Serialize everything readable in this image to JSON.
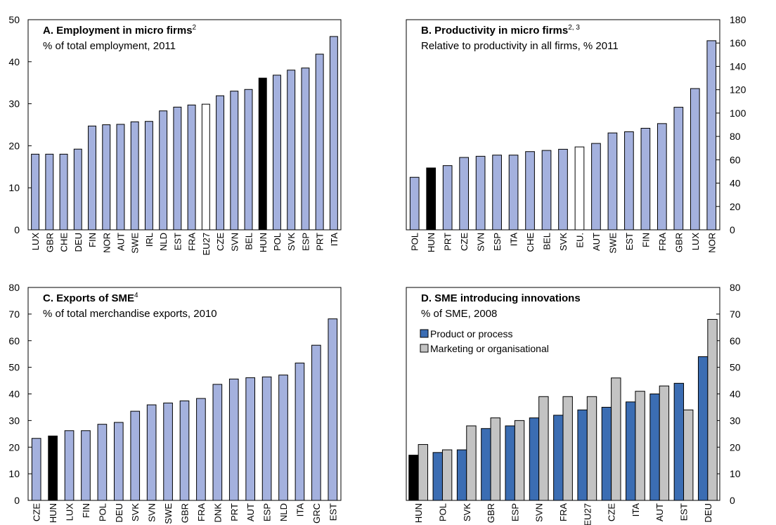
{
  "chart_data": [
    {
      "id": "A",
      "type": "bar",
      "title": "A. Employment in micro firms",
      "title_sup": "2",
      "subtitle": "% of total employment, 2011",
      "categories": [
        "LUX",
        "GBR",
        "CHE",
        "DEU",
        "FIN",
        "NOR",
        "AUT",
        "SWE",
        "IRL",
        "NLD",
        "EST",
        "FRA",
        "EU27",
        "CZE",
        "SVN",
        "BEL",
        "HUN",
        "POL",
        "SVK",
        "ESP",
        "PRT",
        "ITA"
      ],
      "values": [
        18.0,
        18.0,
        18.0,
        19.2,
        24.7,
        25.0,
        25.1,
        25.7,
        25.8,
        28.3,
        29.2,
        29.7,
        29.9,
        31.9,
        33.0,
        33.4,
        36.1,
        36.8,
        38.0,
        38.5,
        41.8,
        46.0
      ],
      "highlight": {
        "HUN": "black",
        "EU27": "white"
      },
      "ylim": [
        0,
        50
      ],
      "yticks": [
        0,
        10,
        20,
        30,
        40,
        50
      ],
      "y_axis_side": "left"
    },
    {
      "id": "B",
      "type": "bar",
      "title": "B.  Productivity in micro firms",
      "title_sup": "2, 3",
      "subtitle": "Relative to productivity in all firms, % 2011",
      "categories": [
        "POL",
        "HUN",
        "PRT",
        "CZE",
        "SVN",
        "ESP",
        "ITA",
        "CHE",
        "BEL",
        "SVK",
        "EU.",
        "AUT",
        "SWE",
        "EST",
        "FIN",
        "FRA",
        "GBR",
        "LUX",
        "NOR"
      ],
      "values": [
        45,
        53,
        55,
        62,
        63,
        64,
        64,
        67,
        68,
        69,
        71,
        74,
        83,
        84,
        87,
        91,
        105,
        121,
        162
      ],
      "highlight": {
        "HUN": "black",
        "EU.": "white"
      },
      "ylim": [
        0,
        180
      ],
      "yticks": [
        0,
        20,
        40,
        60,
        80,
        100,
        120,
        140,
        160,
        180
      ],
      "y_axis_side": "right"
    },
    {
      "id": "C",
      "type": "bar",
      "title": "C. Exports of SME",
      "title_sup": "4",
      "subtitle": "% of total merchandise exports, 2010",
      "categories": [
        "CZE",
        "HUN",
        "LUX",
        "FIN",
        "POL",
        "DEU",
        "SVK",
        "SVN",
        "SWE",
        "GBR",
        "FRA",
        "DNK",
        "PRT",
        "AUT",
        "ESP",
        "NLD",
        "ITA",
        "GRC",
        "EST"
      ],
      "values": [
        23.3,
        24.2,
        26.2,
        26.2,
        28.6,
        29.3,
        33.5,
        35.9,
        36.6,
        37.4,
        38.3,
        43.6,
        45.6,
        46.1,
        46.4,
        47.1,
        51.6,
        58.3,
        68.2
      ],
      "highlight": {
        "HUN": "black"
      },
      "ylim": [
        0,
        80
      ],
      "yticks": [
        0,
        10,
        20,
        30,
        40,
        50,
        60,
        70,
        80
      ],
      "y_axis_side": "left"
    },
    {
      "id": "D",
      "type": "bar",
      "title": "D. SME introducing innovations",
      "title_sup": "",
      "subtitle": "% of SME, 2008",
      "categories": [
        "HUN",
        "POL",
        "SVK",
        "GBR",
        "ESP",
        "SVN",
        "FRA",
        "EU27",
        "CZE",
        "ITA",
        "AUT",
        "EST",
        "DEU"
      ],
      "series": [
        {
          "name": "Product or process",
          "values": [
            17,
            18,
            19,
            27,
            28,
            31,
            32,
            34,
            35,
            37,
            40,
            44,
            54
          ],
          "color": "#3b6db3"
        },
        {
          "name": "Marketing or organisational",
          "values": [
            21,
            19,
            28,
            31,
            30,
            39,
            39,
            39,
            46,
            41,
            43,
            34,
            68
          ],
          "color": "#c3c3c3"
        }
      ],
      "highlight": {
        "HUN": "black"
      },
      "ylim": [
        0,
        80
      ],
      "yticks": [
        0,
        10,
        20,
        30,
        40,
        50,
        60,
        70,
        80
      ],
      "y_axis_side": "right",
      "legend_position": "top-left"
    }
  ],
  "colors": {
    "bar": "#a4b1de",
    "highlight": "#000000",
    "eu": "#ffffff",
    "stroke": "#000000"
  }
}
